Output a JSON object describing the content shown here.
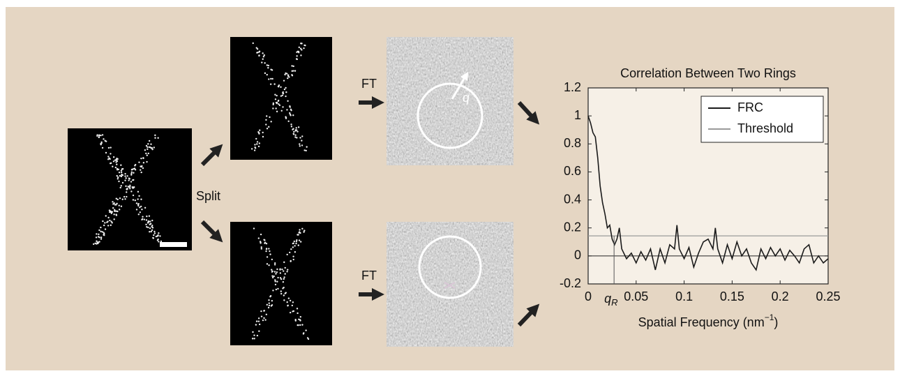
{
  "labels": {
    "split": "Split",
    "ft_top": "FT",
    "ft_bottom": "FT",
    "q": "q"
  },
  "chart_data": {
    "type": "line",
    "title": "Correlation Between Two Rings",
    "xlabel": {
      "main": "Spatial Frequency (nm",
      "sup": "−1",
      "end": ")"
    },
    "xlim": [
      0,
      0.25
    ],
    "ylim": [
      -0.2,
      1.2
    ],
    "xticks": [
      0,
      0.05,
      0.1,
      0.15,
      0.2,
      0.25
    ],
    "yticks": [
      -0.2,
      0,
      0.2,
      0.4,
      0.6,
      0.8,
      1,
      1.2
    ],
    "legend": "upper right",
    "zero_line": true,
    "annotation": {
      "label": "q",
      "subscript": "R",
      "x": 0.027
    },
    "series": [
      {
        "name": "FRC",
        "color": "#1a1a1a",
        "x": [
          0,
          0.0025,
          0.005,
          0.0075,
          0.01,
          0.0125,
          0.015,
          0.0175,
          0.02,
          0.0225,
          0.025,
          0.0275,
          0.03,
          0.0325,
          0.035,
          0.04,
          0.045,
          0.05,
          0.055,
          0.06,
          0.065,
          0.07,
          0.075,
          0.08,
          0.085,
          0.09,
          0.0925,
          0.095,
          0.1,
          0.105,
          0.11,
          0.115,
          0.12,
          0.125,
          0.13,
          0.1325,
          0.135,
          0.14,
          0.145,
          0.15,
          0.155,
          0.16,
          0.165,
          0.17,
          0.175,
          0.18,
          0.185,
          0.19,
          0.195,
          0.2,
          0.205,
          0.21,
          0.215,
          0.22,
          0.225,
          0.23,
          0.235,
          0.24,
          0.245,
          0.25
        ],
        "values": [
          1.0,
          0.95,
          0.88,
          0.85,
          0.7,
          0.5,
          0.38,
          0.3,
          0.2,
          0.22,
          0.12,
          0.08,
          0.12,
          0.2,
          0.05,
          -0.02,
          0.02,
          -0.05,
          0.03,
          -0.03,
          0.05,
          -0.1,
          0.05,
          -0.05,
          0.08,
          0.05,
          0.22,
          0.05,
          -0.02,
          0.06,
          -0.08,
          0.02,
          0.1,
          0.12,
          0.05,
          0.2,
          0.05,
          -0.05,
          0.08,
          -0.02,
          0.1,
          0.0,
          0.05,
          -0.05,
          -0.1,
          0.05,
          -0.02,
          0.06,
          0.0,
          0.05,
          -0.03,
          0.04,
          0.0,
          -0.05,
          0.05,
          0.08,
          -0.05,
          0.0,
          -0.05,
          -0.02
        ]
      },
      {
        "name": "Threshold",
        "color": "#9a9a9a",
        "x": [
          0,
          0.25
        ],
        "values": [
          0.143,
          0.143
        ]
      }
    ]
  }
}
